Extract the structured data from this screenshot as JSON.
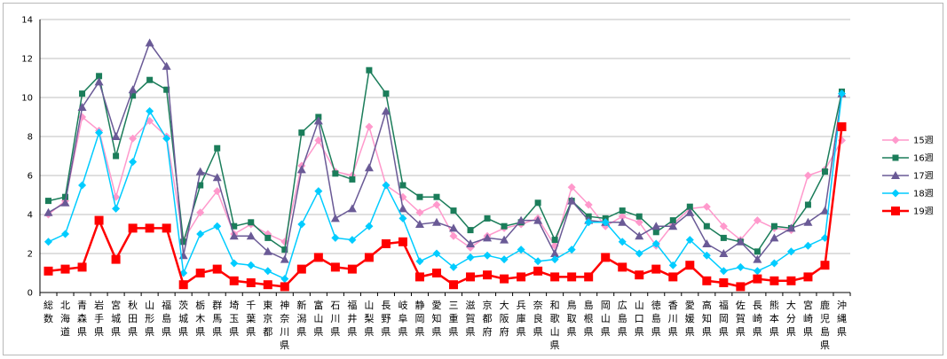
{
  "chart_data": {
    "type": "line",
    "title": "",
    "xlabel": "",
    "ylabel": "",
    "ylim": [
      0,
      14
    ],
    "ytick_step": 2,
    "grid": "horizontal",
    "legend_position": "right",
    "categories": [
      "総数",
      "北海道",
      "青森県",
      "岩手県",
      "宮城県",
      "秋田県",
      "山形県",
      "福島県",
      "茨城県",
      "栃木県",
      "群馬県",
      "埼玉県",
      "千葉県",
      "東京都",
      "神奈川県",
      "新潟県",
      "富山県",
      "石川県",
      "福井県",
      "山梨県",
      "長野県",
      "岐阜県",
      "静岡県",
      "愛知県",
      "三重県",
      "滋賀県",
      "京都府",
      "大阪府",
      "兵庫県",
      "奈良県",
      "和歌山県",
      "鳥取県",
      "島根県",
      "岡山県",
      "広島県",
      "山口県",
      "徳島県",
      "香川県",
      "愛媛県",
      "高知県",
      "福岡県",
      "佐賀県",
      "長崎県",
      "熊本県",
      "大分県",
      "宮崎県",
      "鹿児島県",
      "沖縄県"
    ],
    "series": [
      {
        "name": "15週",
        "color": "#ff99cc",
        "marker": "diamond",
        "values": [
          4.0,
          4.7,
          9.0,
          8.3,
          4.9,
          7.9,
          8.8,
          8.0,
          2.7,
          4.1,
          5.2,
          3.0,
          3.5,
          3.0,
          2.6,
          6.5,
          7.8,
          6.2,
          6.0,
          8.5,
          5.5,
          4.9,
          4.1,
          4.5,
          2.9,
          2.3,
          2.9,
          3.3,
          3.5,
          3.8,
          2.4,
          5.4,
          4.5,
          3.4,
          3.9,
          3.6,
          2.4,
          3.5,
          4.3,
          4.4,
          3.4,
          2.7,
          3.7,
          3.3,
          3.2,
          6.0,
          6.3,
          7.8
        ]
      },
      {
        "name": "16週",
        "color": "#1b7d5a",
        "marker": "square",
        "values": [
          4.7,
          4.9,
          10.2,
          11.1,
          7.0,
          10.1,
          10.9,
          10.4,
          2.6,
          5.5,
          7.4,
          3.4,
          3.6,
          2.8,
          2.2,
          8.2,
          9.0,
          6.1,
          5.8,
          11.4,
          10.2,
          5.5,
          4.9,
          4.9,
          4.2,
          3.2,
          3.8,
          3.4,
          3.6,
          4.6,
          2.7,
          4.7,
          3.9,
          3.8,
          4.2,
          3.9,
          3.1,
          3.7,
          4.4,
          3.4,
          2.8,
          2.6,
          2.1,
          3.4,
          3.3,
          4.5,
          6.2,
          10.3
        ]
      },
      {
        "name": "17週",
        "color": "#6a5a96",
        "marker": "triangle",
        "values": [
          4.1,
          4.6,
          9.5,
          10.8,
          8.0,
          10.4,
          12.8,
          11.6,
          1.9,
          6.2,
          5.9,
          2.9,
          2.9,
          2.1,
          1.7,
          6.3,
          8.8,
          3.8,
          4.3,
          6.4,
          9.3,
          4.3,
          3.5,
          3.6,
          3.3,
          2.5,
          2.8,
          2.7,
          3.7,
          3.7,
          2.0,
          4.7,
          3.7,
          3.6,
          3.6,
          2.9,
          3.4,
          3.4,
          4.1,
          2.5,
          2.0,
          2.6,
          1.7,
          2.8,
          3.3,
          3.6,
          4.2,
          10.2
        ]
      },
      {
        "name": "18週",
        "color": "#00ccff",
        "marker": "diamond",
        "values": [
          2.6,
          3.0,
          5.5,
          8.2,
          4.3,
          6.7,
          9.3,
          7.9,
          1.0,
          3.0,
          3.4,
          1.5,
          1.4,
          1.1,
          0.7,
          3.5,
          5.2,
          2.8,
          2.7,
          3.4,
          5.5,
          3.8,
          1.6,
          2.0,
          1.3,
          1.8,
          1.9,
          1.7,
          2.2,
          1.6,
          1.7,
          2.2,
          3.6,
          3.6,
          2.6,
          2.0,
          2.5,
          1.4,
          2.7,
          1.9,
          1.1,
          1.3,
          1.1,
          1.5,
          2.1,
          2.4,
          2.8,
          10.2
        ]
      },
      {
        "name": "19週",
        "color": "#ff0000",
        "marker": "square",
        "values": [
          1.1,
          1.2,
          1.3,
          3.7,
          1.7,
          3.3,
          3.3,
          3.3,
          0.4,
          1.0,
          1.2,
          0.6,
          0.5,
          0.4,
          0.3,
          1.2,
          1.8,
          1.3,
          1.2,
          1.8,
          2.5,
          2.6,
          0.8,
          1.0,
          0.4,
          0.8,
          0.9,
          0.7,
          0.8,
          1.1,
          0.8,
          0.8,
          0.8,
          1.8,
          1.3,
          0.9,
          1.2,
          0.8,
          1.4,
          0.6,
          0.5,
          0.3,
          0.7,
          0.6,
          0.6,
          0.8,
          1.4,
          8.5
        ]
      }
    ]
  }
}
